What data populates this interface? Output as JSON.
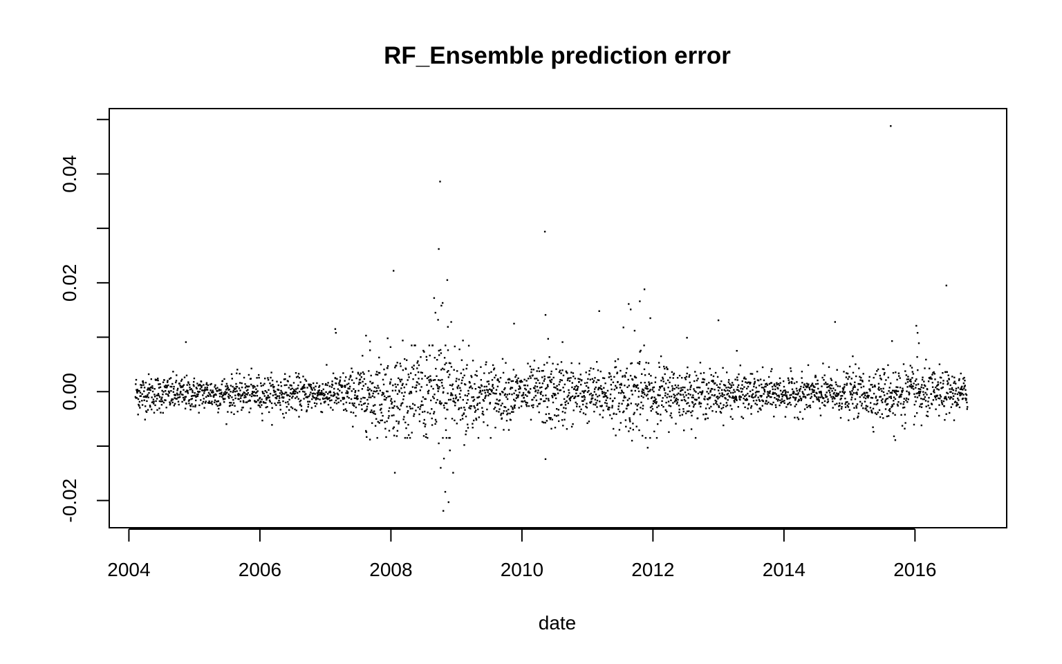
{
  "chart_data": {
    "type": "scatter",
    "title": "RF_Ensemble prediction error",
    "xlabel": "date",
    "ylabel": "",
    "x_axis": "date (years)",
    "xlim": [
      2003.7,
      2017.4
    ],
    "ylim": [
      -0.025,
      0.052
    ],
    "x_ticks": [
      "2004",
      "2006",
      "2008",
      "2010",
      "2012",
      "2014",
      "2016"
    ],
    "y_ticks": [
      "-0.02",
      "0.00",
      "0.02",
      "0.04"
    ],
    "x_range_data": [
      2004.1,
      2016.8
    ],
    "grid": false,
    "legend": "none",
    "point_color": "#000000",
    "series": [
      {
        "points": [
          [
            2004.87,
            0.0091
          ],
          [
            2007.15,
            0.0115
          ],
          [
            2007.16,
            0.0108
          ],
          [
            2007.62,
            0.0103
          ],
          [
            2007.68,
            0.0092
          ],
          [
            2007.68,
            -0.0088
          ],
          [
            2007.95,
            0.0098
          ],
          [
            2008.04,
            0.0222
          ],
          [
            2008.06,
            -0.0149
          ],
          [
            2008.1,
            -0.0072
          ],
          [
            2008.18,
            0.0094
          ],
          [
            2008.52,
            -0.0064
          ],
          [
            2008.66,
            0.0172
          ],
          [
            2008.68,
            0.0145
          ],
          [
            2008.72,
            0.0132
          ],
          [
            2008.73,
            0.0262
          ],
          [
            2008.75,
            0.0386
          ],
          [
            2008.77,
            0.0158
          ],
          [
            2008.79,
            0.0163
          ],
          [
            2008.8,
            -0.0219
          ],
          [
            2008.81,
            -0.0123
          ],
          [
            2008.83,
            -0.0184
          ],
          [
            2008.86,
            0.0205
          ],
          [
            2008.87,
            0.0119
          ],
          [
            2008.88,
            -0.0203
          ],
          [
            2008.9,
            -0.0108
          ],
          [
            2008.92,
            0.0128
          ],
          [
            2008.95,
            -0.0149
          ],
          [
            2008.73,
            -0.0095
          ],
          [
            2008.76,
            -0.014
          ],
          [
            2009.12,
            -0.0098
          ],
          [
            2009.1,
            0.0094
          ],
          [
            2009.88,
            0.0125
          ],
          [
            2010.35,
            0.0294
          ],
          [
            2010.36,
            0.0141
          ],
          [
            2010.36,
            -0.0124
          ],
          [
            2010.4,
            0.0097
          ],
          [
            2010.45,
            -0.0068
          ],
          [
            2010.62,
            0.0091
          ],
          [
            2011.18,
            0.0148
          ],
          [
            2011.55,
            0.0118
          ],
          [
            2011.63,
            0.0161
          ],
          [
            2011.66,
            0.0151
          ],
          [
            2011.68,
            -0.009
          ],
          [
            2011.72,
            0.0112
          ],
          [
            2011.8,
            0.0166
          ],
          [
            2011.84,
            -0.0081
          ],
          [
            2011.87,
            0.0188
          ],
          [
            2011.92,
            -0.0103
          ],
          [
            2011.96,
            0.0135
          ],
          [
            2012.52,
            0.0099
          ],
          [
            2013.0,
            0.0131
          ],
          [
            2013.28,
            0.0075
          ],
          [
            2014.78,
            0.0128
          ],
          [
            2015.05,
            0.0065
          ],
          [
            2015.63,
            0.0488
          ],
          [
            2015.65,
            0.0093
          ],
          [
            2015.68,
            -0.0082
          ],
          [
            2015.7,
            -0.0089
          ],
          [
            2016.02,
            0.0121
          ],
          [
            2016.04,
            0.0108
          ],
          [
            2016.06,
            0.0089
          ],
          [
            2016.1,
            -0.0062
          ],
          [
            2016.48,
            0.0195
          ]
        ]
      }
    ],
    "volatility_profile": [
      [
        2004.0,
        0.0019
      ],
      [
        2005.0,
        0.0015
      ],
      [
        2006.0,
        0.0017
      ],
      [
        2007.0,
        0.0016
      ],
      [
        2007.4,
        0.0022
      ],
      [
        2007.7,
        0.0034
      ],
      [
        2008.0,
        0.0036
      ],
      [
        2008.6,
        0.0048
      ],
      [
        2009.0,
        0.005
      ],
      [
        2009.4,
        0.0032
      ],
      [
        2010.0,
        0.0022
      ],
      [
        2010.5,
        0.0032
      ],
      [
        2011.0,
        0.0024
      ],
      [
        2011.5,
        0.003
      ],
      [
        2011.9,
        0.0038
      ],
      [
        2012.3,
        0.0025
      ],
      [
        2013.0,
        0.002
      ],
      [
        2014.0,
        0.0017
      ],
      [
        2015.0,
        0.002
      ],
      [
        2015.7,
        0.0026
      ],
      [
        2016.0,
        0.0024
      ],
      [
        2016.8,
        0.0017
      ]
    ]
  }
}
